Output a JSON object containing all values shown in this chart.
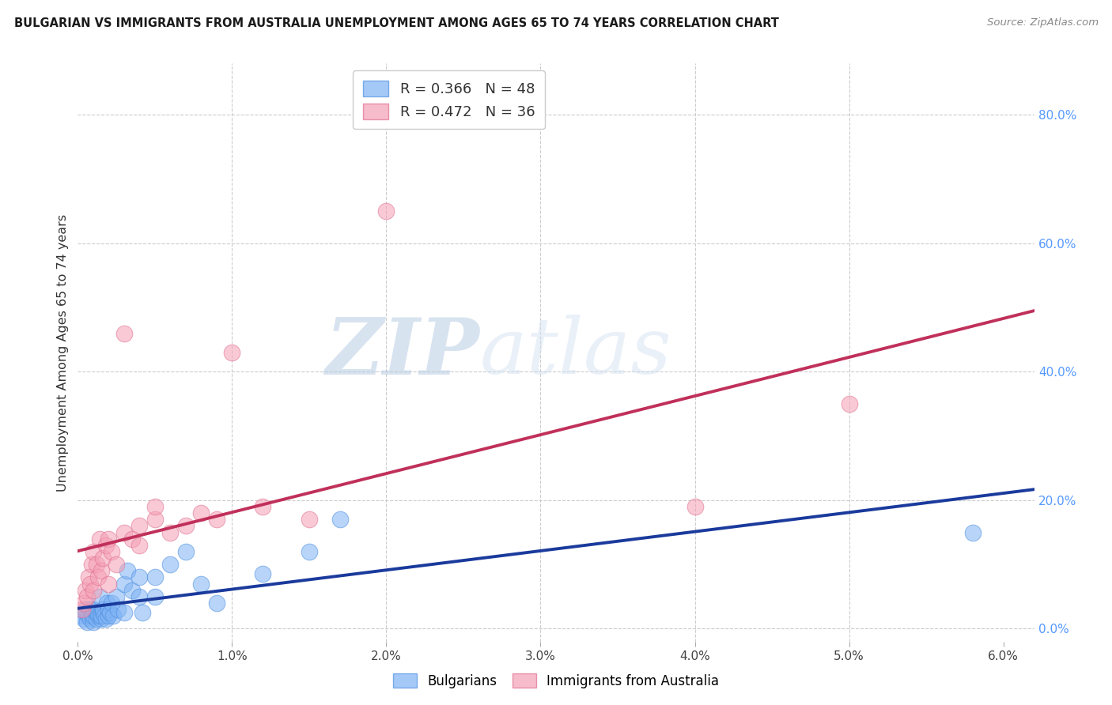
{
  "title": "BULGARIAN VS IMMIGRANTS FROM AUSTRALIA UNEMPLOYMENT AMONG AGES 65 TO 74 YEARS CORRELATION CHART",
  "source": "Source: ZipAtlas.com",
  "ylabel": "Unemployment Among Ages 65 to 74 years",
  "xlim": [
    0.0,
    0.062
  ],
  "ylim": [
    -0.02,
    0.88
  ],
  "xticks": [
    0.0,
    0.01,
    0.02,
    0.03,
    0.04,
    0.05,
    0.06
  ],
  "xticklabels": [
    "0.0%",
    "1.0%",
    "2.0%",
    "3.0%",
    "4.0%",
    "5.0%",
    "6.0%"
  ],
  "yticks_right": [
    0.0,
    0.2,
    0.4,
    0.6,
    0.8
  ],
  "ytick_right_labels": [
    "0.0%",
    "20.0%",
    "40.0%",
    "60.0%",
    "80.0%"
  ],
  "grid_color": "#cccccc",
  "background_color": "#ffffff",
  "blue_color": "#7fb3f5",
  "pink_color": "#f5a0b5",
  "blue_edge_color": "#5090e0",
  "pink_edge_color": "#e07090",
  "blue_line_color": "#1a3a9c",
  "pink_line_color": "#c0305a",
  "R_blue": 0.366,
  "N_blue": 48,
  "R_pink": 0.472,
  "N_pink": 36,
  "watermark_zip": "ZIP",
  "watermark_atlas": "atlas",
  "blue_scatter_x": [
    0.0003,
    0.0004,
    0.0005,
    0.0005,
    0.0006,
    0.0007,
    0.0008,
    0.0008,
    0.0009,
    0.001,
    0.001,
    0.001,
    0.0012,
    0.0012,
    0.0013,
    0.0014,
    0.0014,
    0.0015,
    0.0015,
    0.0016,
    0.0016,
    0.0017,
    0.0018,
    0.0019,
    0.002,
    0.002,
    0.0021,
    0.0022,
    0.0023,
    0.0025,
    0.0026,
    0.003,
    0.003,
    0.0032,
    0.0035,
    0.004,
    0.004,
    0.0042,
    0.005,
    0.005,
    0.006,
    0.007,
    0.008,
    0.009,
    0.012,
    0.015,
    0.017,
    0.058
  ],
  "blue_scatter_y": [
    0.02,
    0.015,
    0.025,
    0.03,
    0.01,
    0.02,
    0.015,
    0.03,
    0.02,
    0.01,
    0.02,
    0.03,
    0.015,
    0.025,
    0.02,
    0.02,
    0.05,
    0.015,
    0.02,
    0.025,
    0.03,
    0.02,
    0.015,
    0.04,
    0.02,
    0.03,
    0.025,
    0.04,
    0.02,
    0.05,
    0.03,
    0.025,
    0.07,
    0.09,
    0.06,
    0.05,
    0.08,
    0.025,
    0.08,
    0.05,
    0.1,
    0.12,
    0.07,
    0.04,
    0.085,
    0.12,
    0.17,
    0.15
  ],
  "pink_scatter_x": [
    0.0003,
    0.0004,
    0.0005,
    0.0006,
    0.0007,
    0.0008,
    0.0009,
    0.001,
    0.001,
    0.0012,
    0.0013,
    0.0014,
    0.0015,
    0.0016,
    0.0018,
    0.002,
    0.002,
    0.0022,
    0.0025,
    0.003,
    0.003,
    0.0035,
    0.004,
    0.004,
    0.005,
    0.005,
    0.006,
    0.007,
    0.008,
    0.009,
    0.01,
    0.012,
    0.015,
    0.02,
    0.04,
    0.05
  ],
  "pink_scatter_y": [
    0.03,
    0.04,
    0.06,
    0.05,
    0.08,
    0.07,
    0.1,
    0.06,
    0.12,
    0.1,
    0.08,
    0.14,
    0.09,
    0.11,
    0.13,
    0.07,
    0.14,
    0.12,
    0.1,
    0.46,
    0.15,
    0.14,
    0.13,
    0.16,
    0.17,
    0.19,
    0.15,
    0.16,
    0.18,
    0.17,
    0.43,
    0.19,
    0.17,
    0.65,
    0.19,
    0.35
  ]
}
